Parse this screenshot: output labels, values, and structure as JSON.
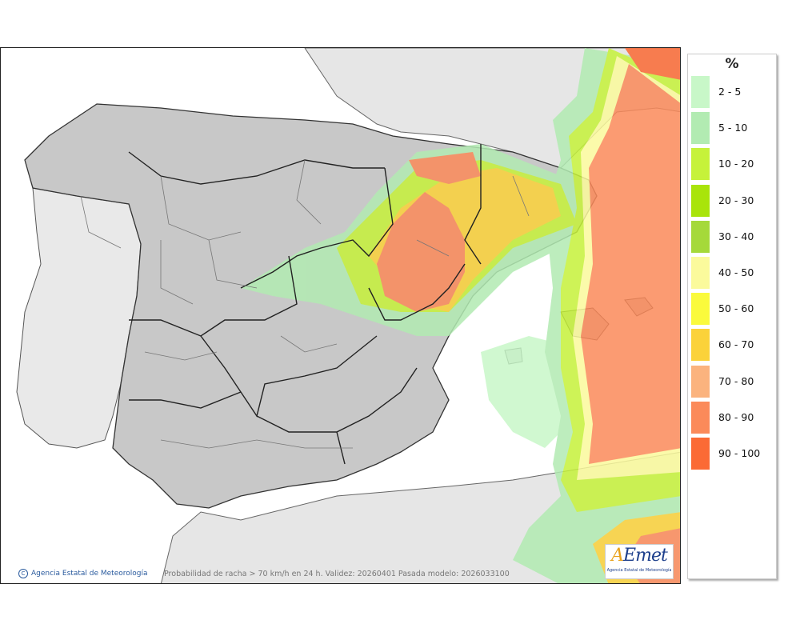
{
  "map": {
    "caption": "Probabilidad de racha > 70 km/h en 24 h. Validez: 20260401 Pasada modelo: 2026033100",
    "credit": "Agencia Estatal de Meteorología",
    "logo": {
      "brand_a": "A",
      "brand_rest": "Emet",
      "subtitle": "Agencia Estatal de Meteorología"
    }
  },
  "legend": {
    "unit": "%",
    "items": [
      {
        "label": "2 - 5",
        "color": "#c8f7c8"
      },
      {
        "label": "5 - 10",
        "color": "#b2ebb2"
      },
      {
        "label": "10 - 20",
        "color": "#c6f23a"
      },
      {
        "label": "20 - 30",
        "color": "#a9e40a"
      },
      {
        "label": "30 - 40",
        "color": "#a5d93a"
      },
      {
        "label": "40 - 50",
        "color": "#fbfa9c"
      },
      {
        "label": "50 - 60",
        "color": "#fafa3c"
      },
      {
        "label": "60 - 70",
        "color": "#fbd23a"
      },
      {
        "label": "70 - 80",
        "color": "#fbb37e"
      },
      {
        "label": "80 - 90",
        "color": "#fb8a5a"
      },
      {
        "label": "90 - 100",
        "color": "#fb6a35"
      }
    ]
  }
}
